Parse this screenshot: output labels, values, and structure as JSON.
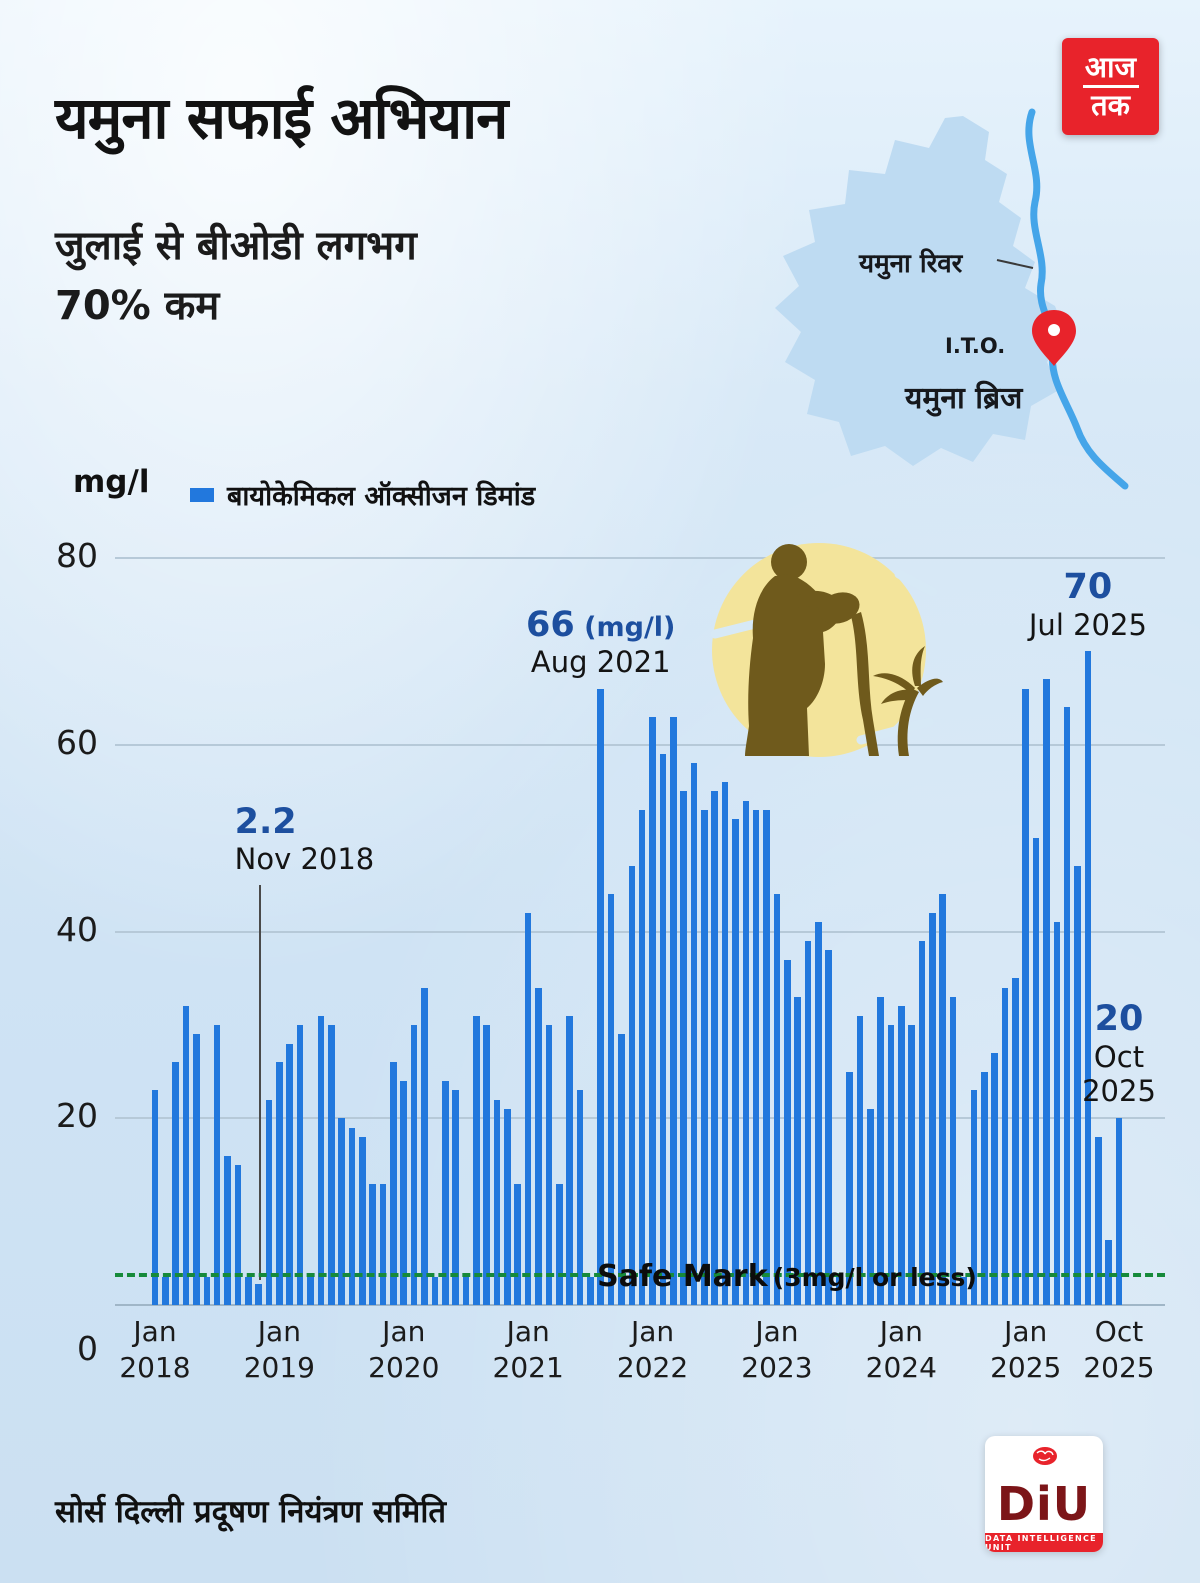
{
  "colors": {
    "bar": "#2278dd",
    "ann_blue": "#1d4f9f",
    "safe_green": "#168a3a",
    "brand_red": "#e8232b",
    "map_fill": "#bedbf2",
    "river": "#45a5e9",
    "yellow": "#f3e49b",
    "brown": "#6f5a1c"
  },
  "header": {
    "title": "यमुना सफाई अभियान",
    "subtitle_line1": "जुलाई से बीओडी लगभग",
    "subtitle_line2": "70% कम",
    "logo_top": "आज",
    "logo_bottom": "तक"
  },
  "map": {
    "river_label": "यमुना रिवर",
    "ito_label": "I.T.O.",
    "bridge_label": "यमुना ब्रिज"
  },
  "legend": {
    "unit": "mg/l",
    "series_label": "बायोकेमिकल ऑक्सीजन डिमांड"
  },
  "chart_data": {
    "type": "bar",
    "title": "यमुना सफाई अभियान - बायोकेमिकल ऑक्सीजन डिमांड",
    "xlabel": "",
    "ylabel": "mg/l",
    "ylim": [
      0,
      80
    ],
    "yticks": [
      0,
      20,
      40,
      60,
      80
    ],
    "grid": true,
    "legend_position": "top-left",
    "months": [
      "Jan 2018",
      "Feb 2018",
      "Mar 2018",
      "Apr 2018",
      "May 2018",
      "Jun 2018",
      "Jul 2018",
      "Aug 2018",
      "Sep 2018",
      "Oct 2018",
      "Nov 2018",
      "Dec 2018",
      "Jan 2019",
      "Feb 2019",
      "Mar 2019",
      "Apr 2019",
      "May 2019",
      "Jun 2019",
      "Jul 2019",
      "Aug 2019",
      "Sep 2019",
      "Oct 2019",
      "Nov 2019",
      "Dec 2019",
      "Jan 2020",
      "Feb 2020",
      "Mar 2020",
      "Apr 2020",
      "May 2020",
      "Jun 2020",
      "Jul 2020",
      "Aug 2020",
      "Sep 2020",
      "Oct 2020",
      "Nov 2020",
      "Dec 2020",
      "Jan 2021",
      "Feb 2021",
      "Mar 2021",
      "Apr 2021",
      "May 2021",
      "Jun 2021",
      "Jul 2021",
      "Aug 2021",
      "Sep 2021",
      "Oct 2021",
      "Nov 2021",
      "Dec 2021",
      "Jan 2022",
      "Feb 2022",
      "Mar 2022",
      "Apr 2022",
      "May 2022",
      "Jun 2022",
      "Jul 2022",
      "Aug 2022",
      "Sep 2022",
      "Oct 2022",
      "Nov 2022",
      "Dec 2022",
      "Jan 2023",
      "Feb 2023",
      "Mar 2023",
      "Apr 2023",
      "May 2023",
      "Jun 2023",
      "Jul 2023",
      "Aug 2023",
      "Sep 2023",
      "Oct 2023",
      "Nov 2023",
      "Dec 2023",
      "Jan 2024",
      "Feb 2024",
      "Mar 2024",
      "Apr 2024",
      "May 2024",
      "Jun 2024",
      "Jul 2024",
      "Aug 2024",
      "Sep 2024",
      "Oct 2024",
      "Nov 2024",
      "Dec 2024",
      "Jan 2025",
      "Feb 2025",
      "Mar 2025",
      "Apr 2025",
      "May 2025",
      "Jun 2025",
      "Jul 2025",
      "Aug 2025",
      "Sep 2025",
      "Oct 2025"
    ],
    "values": [
      23,
      3,
      26,
      32,
      29,
      3,
      30,
      16,
      15,
      3,
      2.2,
      22,
      26,
      28,
      30,
      3,
      31,
      30,
      20,
      19,
      18,
      13,
      13,
      26,
      24,
      30,
      34,
      3,
      24,
      23,
      3,
      31,
      30,
      22,
      21,
      13,
      42,
      34,
      30,
      13,
      31,
      23,
      3,
      66,
      44,
      29,
      47,
      53,
      63,
      59,
      63,
      55,
      58,
      53,
      55,
      56,
      52,
      54,
      53,
      53,
      44,
      37,
      33,
      39,
      41,
      38,
      3,
      25,
      31,
      21,
      33,
      30,
      32,
      30,
      39,
      42,
      44,
      33,
      3,
      23,
      25,
      27,
      34,
      35,
      66,
      50,
      67,
      41,
      64,
      47,
      70,
      18,
      7,
      20
    ],
    "x_ticks": [
      {
        "index": 0,
        "line1": "Jan",
        "line2": "2018"
      },
      {
        "index": 12,
        "line1": "Jan",
        "line2": "2019"
      },
      {
        "index": 24,
        "line1": "Jan",
        "line2": "2020"
      },
      {
        "index": 36,
        "line1": "Jan",
        "line2": "2021"
      },
      {
        "index": 48,
        "line1": "Jan",
        "line2": "2022"
      },
      {
        "index": 60,
        "line1": "Jan",
        "line2": "2023"
      },
      {
        "index": 72,
        "line1": "Jan",
        "line2": "2024"
      },
      {
        "index": 84,
        "line1": "Jan",
        "line2": "2025"
      },
      {
        "index": 93,
        "line1": "Oct",
        "line2": "2025"
      }
    ],
    "safe_mark": {
      "value": 3,
      "label_main": "Safe Mark",
      "label_sub": "(3mg/l or less)"
    },
    "annotations": [
      {
        "index": 10,
        "value_label": "2.2",
        "date_label": "Nov 2018",
        "style": "line-up"
      },
      {
        "index": 43,
        "value_label": "66",
        "unit_label": "(mg/l)",
        "date_label": "Aug 2021"
      },
      {
        "index": 90,
        "value_label": "70",
        "date_label": "Jul 2025"
      },
      {
        "index": 93,
        "value_label": "20",
        "date_label_line1": "Oct",
        "date_label_line2": "2025"
      }
    ]
  },
  "footer": {
    "source": "सोर्स दिल्ली प्रदूषण नियंत्रण समिति",
    "diu_name": "DiU",
    "diu_tagline": "DATA INTELLIGENCE UNIT"
  }
}
